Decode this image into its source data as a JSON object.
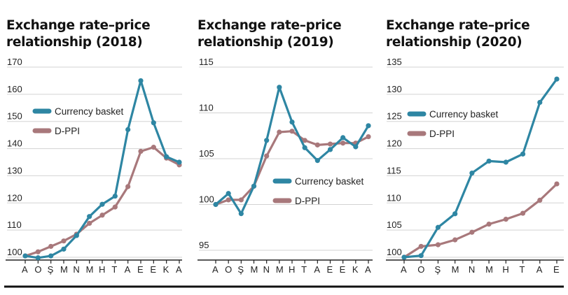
{
  "colors": {
    "basket": "#2e86a3",
    "dppi": "#a8787b",
    "grid": "#d3d3d3",
    "axis": "#222222",
    "rule": "#111111"
  },
  "chart_data": [
    {
      "type": "line",
      "title": "Exchange rate–price relationship (2018)",
      "title_lines": [
        "Exchange rate–price",
        "relationship (2018)"
      ],
      "categories": [
        "A",
        "O",
        "Ş",
        "M",
        "N",
        "M",
        "H",
        "T",
        "A",
        "E",
        "E",
        "K",
        "A"
      ],
      "ylim": [
        100,
        170
      ],
      "yticks": [
        100,
        110,
        120,
        130,
        140,
        150,
        160,
        170
      ],
      "grid": true,
      "legend": "middle-left",
      "series": [
        {
          "name": "Currency basket",
          "color": "basket",
          "values": [
            100.5,
            99.8,
            100.5,
            103,
            108,
            115,
            119.5,
            122.5,
            147,
            165,
            149.5,
            137,
            135
          ]
        },
        {
          "name": "D-PPI",
          "color": "dppi",
          "values": [
            100.5,
            102,
            104,
            106,
            108.5,
            112.5,
            115.5,
            118.5,
            126,
            139,
            140.5,
            136.5,
            134
          ]
        }
      ]
    },
    {
      "type": "line",
      "title": "Exchange rate–price relationship (2019)",
      "title_lines": [
        "Exchange rate–price",
        "relationship (2019)"
      ],
      "categories": [
        "A",
        "O",
        "Ş",
        "M",
        "N",
        "M",
        "H",
        "T",
        "A",
        "E",
        "E",
        "K",
        "A"
      ],
      "ylim": [
        95,
        115
      ],
      "yticks": [
        95,
        100,
        105,
        110,
        115
      ],
      "grid": true,
      "legend": "lower-right",
      "series": [
        {
          "name": "Currency basket",
          "color": "basket",
          "values": [
            100,
            101.2,
            99,
            102,
            107,
            112.8,
            109,
            106.2,
            104.8,
            106,
            107.3,
            106.3,
            108.6
          ]
        },
        {
          "name": "D-PPI",
          "color": "dppi",
          "values": [
            100,
            100.5,
            100.5,
            102,
            105.3,
            107.9,
            108,
            107,
            106.5,
            106.6,
            106.7,
            106.7,
            107.4
          ]
        }
      ]
    },
    {
      "type": "line",
      "title": "Exchange rate–price relationship (2020)",
      "title_lines": [
        "Exchange rate–price",
        "relationship (2020)"
      ],
      "categories": [
        "A",
        "O",
        "Ş",
        "M",
        "N",
        "M",
        "H",
        "T",
        "A",
        "E"
      ],
      "ylim": [
        100,
        135
      ],
      "yticks": [
        100,
        105,
        110,
        115,
        120,
        125,
        130,
        135
      ],
      "grid": true,
      "legend": "upper-left",
      "series": [
        {
          "name": "Currency basket",
          "color": "basket",
          "values": [
            100,
            100.3,
            105.5,
            108,
            115.5,
            117.7,
            117.5,
            119,
            128.5,
            132.8
          ]
        },
        {
          "name": "D-PPI",
          "color": "dppi",
          "values": [
            100,
            102,
            102.3,
            103.2,
            104.6,
            106.1,
            107,
            108.1,
            110.5,
            113.5
          ]
        }
      ]
    }
  ]
}
